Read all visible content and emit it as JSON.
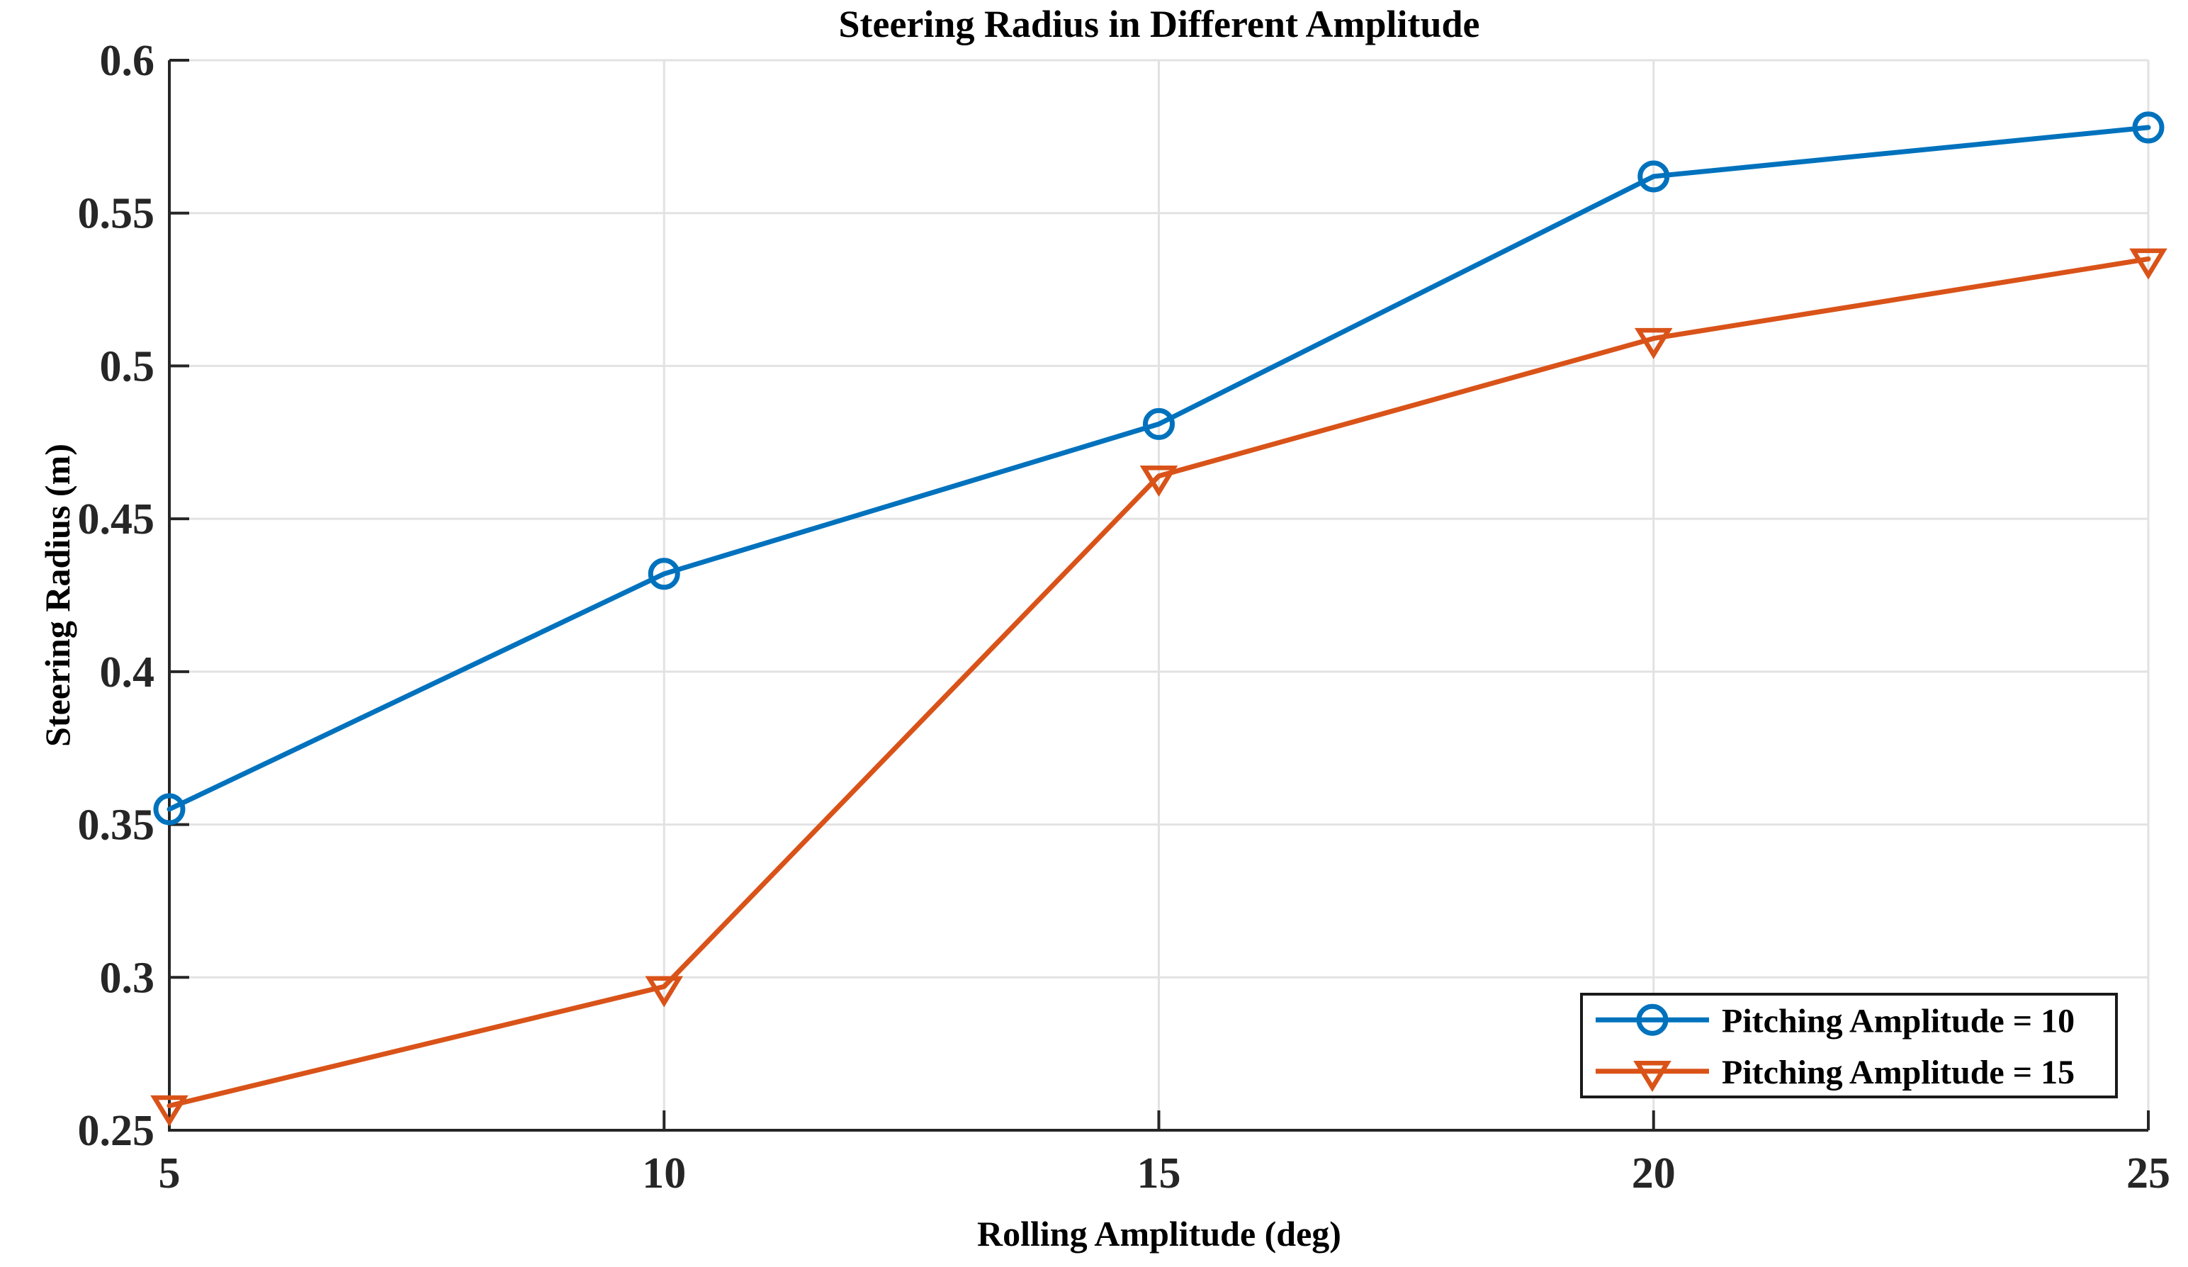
{
  "chart_data": {
    "type": "line",
    "title": "Steering Radius in Different Amplitude",
    "xlabel": "Rolling Amplitude (deg)",
    "ylabel": "Steering Radius (m)",
    "x": [
      5,
      10,
      15,
      20,
      25
    ],
    "xlim": [
      5,
      25
    ],
    "ylim": [
      0.25,
      0.6
    ],
    "xticks": [
      "5",
      "10",
      "15",
      "20",
      "25"
    ],
    "yticks": [
      "0.25",
      "0.3",
      "0.35",
      "0.4",
      "0.45",
      "0.5",
      "0.55",
      "0.6"
    ],
    "grid": true,
    "legend_position": "lower-right-inset",
    "series": [
      {
        "name": "Pitching Amplitude = 10",
        "marker": "circle",
        "color": "#0072BD",
        "values": [
          0.355,
          0.432,
          0.481,
          0.562,
          0.578
        ]
      },
      {
        "name": "Pitching Amplitude = 15",
        "marker": "triangle-down",
        "color": "#D95319",
        "values": [
          0.258,
          0.297,
          0.464,
          0.509,
          0.535
        ]
      }
    ],
    "colors": {
      "background": "#FFFFFF",
      "grid": "#E2E2E2",
      "axis": "#262626",
      "tick_label": "#262626",
      "title_text": "#000000",
      "legend_border": "#1A1A1A",
      "legend_background": "#FFFFFF"
    }
  }
}
